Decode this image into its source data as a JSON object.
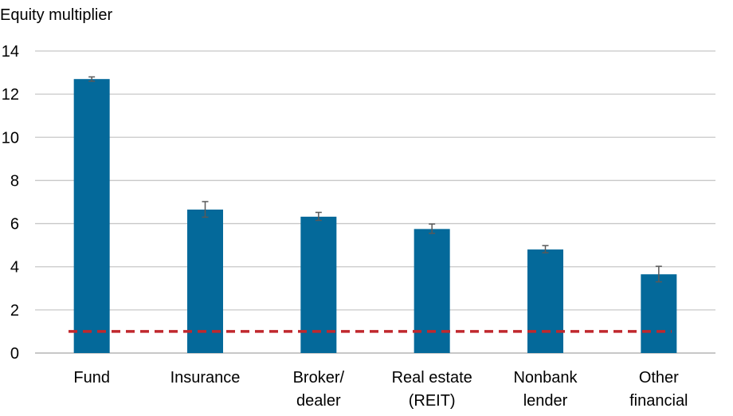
{
  "chart_data": {
    "type": "bar",
    "ylabel": "Equity multiplier",
    "ylim": [
      0,
      14
    ],
    "yticks": [
      0,
      2,
      4,
      6,
      8,
      10,
      12,
      14
    ],
    "grid": true,
    "categories": [
      [
        "Fund"
      ],
      [
        "Insurance"
      ],
      [
        "Broker/",
        "dealer"
      ],
      [
        "Real estate",
        "(REIT)"
      ],
      [
        "Nonbank",
        "lender"
      ],
      [
        "Other",
        "financial"
      ]
    ],
    "series": [
      {
        "values": [
          12.7,
          6.65,
          6.32,
          5.75,
          4.8,
          3.65
        ],
        "error_low": [
          12.6,
          6.3,
          6.15,
          5.55,
          4.65,
          3.3
        ],
        "error_high": [
          12.8,
          7.02,
          6.52,
          5.98,
          4.98,
          4.02
        ]
      }
    ],
    "reference_line": {
      "value": 1,
      "style": "dashed"
    },
    "colors": {
      "bar": "#04699a",
      "error_bar": "#595959",
      "reference_line": "#c0282d",
      "grid": "#c8c8c8"
    }
  }
}
